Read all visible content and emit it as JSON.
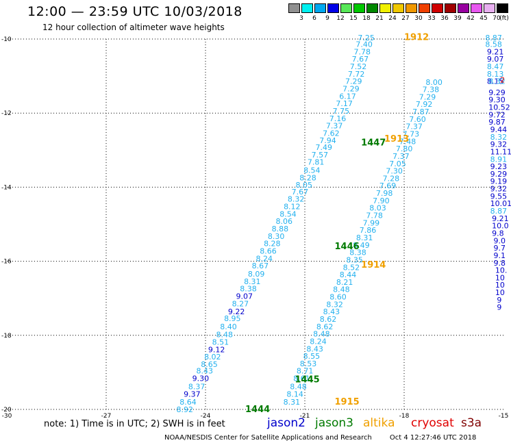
{
  "header": {
    "title": "12:00 — 23:59 UTC 10/03/2018",
    "subtitle": "12 hour collection of altimeter wave heights"
  },
  "legend": {
    "unit": "(ft)",
    "bins": [
      {
        "label": "3",
        "color": "#909090"
      },
      {
        "label": "6",
        "color": "#00f0f0"
      },
      {
        "label": "9",
        "color": "#00a8f0"
      },
      {
        "label": "12",
        "color": "#0000e8"
      },
      {
        "label": "15",
        "color": "#58e858"
      },
      {
        "label": "18",
        "color": "#00c800"
      },
      {
        "label": "21",
        "color": "#008800"
      },
      {
        "label": "24",
        "color": "#f0f000"
      },
      {
        "label": "27",
        "color": "#f0c800"
      },
      {
        "label": "30",
        "color": "#f09800"
      },
      {
        "label": "33",
        "color": "#f04000"
      },
      {
        "label": "36",
        "color": "#d00000"
      },
      {
        "label": "39",
        "color": "#a00000"
      },
      {
        "label": "42",
        "color": "#9800a0"
      },
      {
        "label": "45",
        "color": "#e858f0"
      },
      {
        "label": "70",
        "color": "#e8b0f0"
      },
      {
        "label": "",
        "color": "#000000"
      }
    ]
  },
  "map": {
    "x_ticks": [
      "-30",
      "-27",
      "-24",
      "-21",
      "-18",
      "-15"
    ],
    "y_ticks": [
      "-10",
      "-12",
      "-14",
      "-16",
      "-18",
      "-20"
    ],
    "colors": {
      "c": "#22b0ee",
      "b": "#0000cc",
      "g": "#007a00",
      "o": "#f0a000",
      "r": "#e00000"
    },
    "annotations": [
      {
        "lon": -20.1,
        "lat": -19.8,
        "text": "1915",
        "color": "o"
      },
      {
        "lon": -22.8,
        "lat": -20.0,
        "text": "1444",
        "color": "g"
      },
      {
        "lon": -21.3,
        "lat": -19.2,
        "text": "1445",
        "color": "g"
      },
      {
        "lon": -20.1,
        "lat": -15.6,
        "text": "1446",
        "color": "g"
      },
      {
        "lon": -19.3,
        "lat": -12.8,
        "text": "1447",
        "color": "g"
      },
      {
        "lon": -19.3,
        "lat": -16.1,
        "text": "1914",
        "color": "o"
      },
      {
        "lon": -18.6,
        "lat": -12.7,
        "text": "1913",
        "color": "o"
      },
      {
        "lon": -18.0,
        "lat": -9.95,
        "text": "1912",
        "color": "o"
      }
    ],
    "labels": [
      {
        "lon": -24.88,
        "lat": -20.0,
        "text": "8.92",
        "color": "c"
      },
      {
        "lon": -24.78,
        "lat": -19.8,
        "text": "8.64",
        "color": "c"
      },
      {
        "lon": -24.66,
        "lat": -19.58,
        "text": "9.37",
        "color": "b"
      },
      {
        "lon": -24.52,
        "lat": -19.38,
        "text": "8.37",
        "color": "c"
      },
      {
        "lon": -24.4,
        "lat": -19.16,
        "text": "9.30",
        "color": "b"
      },
      {
        "lon": -24.28,
        "lat": -18.96,
        "text": "8.43",
        "color": "c"
      },
      {
        "lon": -24.14,
        "lat": -18.78,
        "text": "8.65",
        "color": "c"
      },
      {
        "lon": -24.04,
        "lat": -18.58,
        "text": "8.02",
        "color": "c"
      },
      {
        "lon": -23.92,
        "lat": -18.38,
        "text": "9.12",
        "color": "b"
      },
      {
        "lon": -23.8,
        "lat": -18.18,
        "text": "8.51",
        "color": "c"
      },
      {
        "lon": -23.68,
        "lat": -17.98,
        "text": "8.48",
        "color": "c"
      },
      {
        "lon": -23.56,
        "lat": -17.76,
        "text": "8.40",
        "color": "c"
      },
      {
        "lon": -23.44,
        "lat": -17.54,
        "text": "8.95",
        "color": "c"
      },
      {
        "lon": -23.32,
        "lat": -17.36,
        "text": "9.22",
        "color": "b"
      },
      {
        "lon": -23.2,
        "lat": -17.14,
        "text": "8.27",
        "color": "c"
      },
      {
        "lon": -23.08,
        "lat": -16.94,
        "text": "9.07",
        "color": "b"
      },
      {
        "lon": -22.96,
        "lat": -16.74,
        "text": "8.38",
        "color": "c"
      },
      {
        "lon": -22.84,
        "lat": -16.54,
        "text": "8.31",
        "color": "c"
      },
      {
        "lon": -22.72,
        "lat": -16.34,
        "text": "8.09",
        "color": "c"
      },
      {
        "lon": -22.6,
        "lat": -16.12,
        "text": "8.67",
        "color": "c"
      },
      {
        "lon": -22.48,
        "lat": -15.92,
        "text": "8.24",
        "color": "c"
      },
      {
        "lon": -22.36,
        "lat": -15.72,
        "text": "8.66",
        "color": "c"
      },
      {
        "lon": -22.24,
        "lat": -15.52,
        "text": "8.28",
        "color": "c"
      },
      {
        "lon": -22.12,
        "lat": -15.32,
        "text": "8.30",
        "color": "c"
      },
      {
        "lon": -22.0,
        "lat": -15.12,
        "text": "8.88",
        "color": "c"
      },
      {
        "lon": -21.88,
        "lat": -14.92,
        "text": "8.06",
        "color": "c"
      },
      {
        "lon": -21.76,
        "lat": -14.72,
        "text": "8.54",
        "color": "c"
      },
      {
        "lon": -21.64,
        "lat": -14.52,
        "text": "8.12",
        "color": "c"
      },
      {
        "lon": -21.52,
        "lat": -14.32,
        "text": "8.32",
        "color": "c"
      },
      {
        "lon": -21.4,
        "lat": -14.12,
        "text": "7.67",
        "color": "c"
      },
      {
        "lon": -21.28,
        "lat": -13.94,
        "text": "8.05",
        "color": "c"
      },
      {
        "lon": -21.16,
        "lat": -13.74,
        "text": "8.28",
        "color": "c"
      },
      {
        "lon": -21.04,
        "lat": -13.54,
        "text": "8.54",
        "color": "c"
      },
      {
        "lon": -20.92,
        "lat": -13.32,
        "text": "7.81",
        "color": "c"
      },
      {
        "lon": -20.8,
        "lat": -13.12,
        "text": "7.57",
        "color": "c"
      },
      {
        "lon": -20.68,
        "lat": -12.92,
        "text": "7.49",
        "color": "c"
      },
      {
        "lon": -20.56,
        "lat": -12.74,
        "text": "7.94",
        "color": "c"
      },
      {
        "lon": -20.46,
        "lat": -12.54,
        "text": "7.62",
        "color": "c"
      },
      {
        "lon": -20.36,
        "lat": -12.34,
        "text": "7.37",
        "color": "c"
      },
      {
        "lon": -20.26,
        "lat": -12.14,
        "text": "7.16",
        "color": "c"
      },
      {
        "lon": -20.16,
        "lat": -11.94,
        "text": "7.75",
        "color": "c"
      },
      {
        "lon": -20.06,
        "lat": -11.74,
        "text": "7.17",
        "color": "c"
      },
      {
        "lon": -19.96,
        "lat": -11.54,
        "text": "6.17",
        "color": "c"
      },
      {
        "lon": -19.86,
        "lat": -11.34,
        "text": "7.29",
        "color": "c"
      },
      {
        "lon": -19.78,
        "lat": -11.14,
        "text": "7.29",
        "color": "c"
      },
      {
        "lon": -19.7,
        "lat": -10.94,
        "text": "7.72",
        "color": "c"
      },
      {
        "lon": -19.64,
        "lat": -10.74,
        "text": "7.52",
        "color": "c"
      },
      {
        "lon": -19.58,
        "lat": -10.54,
        "text": "7.67",
        "color": "c"
      },
      {
        "lon": -19.52,
        "lat": -10.34,
        "text": "7.78",
        "color": "c"
      },
      {
        "lon": -19.46,
        "lat": -10.14,
        "text": "7.40",
        "color": "c"
      },
      {
        "lon": -19.4,
        "lat": -9.96,
        "text": "7.25",
        "color": "c"
      },
      {
        "lon": -21.65,
        "lat": -19.8,
        "text": "8.31",
        "color": "c"
      },
      {
        "lon": -21.55,
        "lat": -19.58,
        "text": "8.14",
        "color": "c"
      },
      {
        "lon": -21.45,
        "lat": -19.38,
        "text": "8.48",
        "color": "c"
      },
      {
        "lon": -21.35,
        "lat": -19.16,
        "text": "8.61",
        "color": "c"
      },
      {
        "lon": -21.25,
        "lat": -18.96,
        "text": "8.71",
        "color": "c"
      },
      {
        "lon": -21.15,
        "lat": -18.76,
        "text": "8.53",
        "color": "c"
      },
      {
        "lon": -21.05,
        "lat": -18.56,
        "text": "8.55",
        "color": "c"
      },
      {
        "lon": -20.95,
        "lat": -18.36,
        "text": "8.43",
        "color": "c"
      },
      {
        "lon": -20.85,
        "lat": -18.16,
        "text": "8.24",
        "color": "c"
      },
      {
        "lon": -20.75,
        "lat": -17.96,
        "text": "8.48",
        "color": "c"
      },
      {
        "lon": -20.65,
        "lat": -17.76,
        "text": "8.62",
        "color": "c"
      },
      {
        "lon": -20.55,
        "lat": -17.56,
        "text": "8.62",
        "color": "c"
      },
      {
        "lon": -20.45,
        "lat": -17.36,
        "text": "8.43",
        "color": "c"
      },
      {
        "lon": -20.35,
        "lat": -17.16,
        "text": "8.32",
        "color": "c"
      },
      {
        "lon": -20.25,
        "lat": -16.96,
        "text": "8.60",
        "color": "c"
      },
      {
        "lon": -20.15,
        "lat": -16.76,
        "text": "8.48",
        "color": "c"
      },
      {
        "lon": -20.05,
        "lat": -16.56,
        "text": "8.21",
        "color": "c"
      },
      {
        "lon": -19.95,
        "lat": -16.36,
        "text": "8.44",
        "color": "c"
      },
      {
        "lon": -19.85,
        "lat": -16.16,
        "text": "8.52",
        "color": "c"
      },
      {
        "lon": -19.75,
        "lat": -15.96,
        "text": "8.35",
        "color": "c"
      },
      {
        "lon": -19.65,
        "lat": -15.76,
        "text": "8.38",
        "color": "c"
      },
      {
        "lon": -19.55,
        "lat": -15.56,
        "text": "8.49",
        "color": "c"
      },
      {
        "lon": -19.45,
        "lat": -15.36,
        "text": "8.31",
        "color": "c"
      },
      {
        "lon": -19.35,
        "lat": -15.16,
        "text": "7.86",
        "color": "c"
      },
      {
        "lon": -19.25,
        "lat": -14.96,
        "text": "7.99",
        "color": "c"
      },
      {
        "lon": -19.15,
        "lat": -14.76,
        "text": "7.78",
        "color": "c"
      },
      {
        "lon": -19.05,
        "lat": -14.56,
        "text": "8.03",
        "color": "c"
      },
      {
        "lon": -18.95,
        "lat": -14.36,
        "text": "7.90",
        "color": "c"
      },
      {
        "lon": -18.85,
        "lat": -14.16,
        "text": "7.98",
        "color": "c"
      },
      {
        "lon": -18.75,
        "lat": -13.96,
        "text": "7.69",
        "color": "c"
      },
      {
        "lon": -18.65,
        "lat": -13.76,
        "text": "7.28",
        "color": "c"
      },
      {
        "lon": -18.55,
        "lat": -13.56,
        "text": "7.30",
        "color": "c"
      },
      {
        "lon": -18.45,
        "lat": -13.36,
        "text": "7.05",
        "color": "c"
      },
      {
        "lon": -18.35,
        "lat": -13.16,
        "text": "7.37",
        "color": "c"
      },
      {
        "lon": -18.25,
        "lat": -12.96,
        "text": "7.80",
        "color": "c"
      },
      {
        "lon": -18.15,
        "lat": -12.76,
        "text": "7.48",
        "color": "c"
      },
      {
        "lon": -18.05,
        "lat": -12.56,
        "text": "7.73",
        "color": "c"
      },
      {
        "lon": -17.95,
        "lat": -12.36,
        "text": "7.37",
        "color": "c"
      },
      {
        "lon": -17.85,
        "lat": -12.16,
        "text": "7.60",
        "color": "c"
      },
      {
        "lon": -17.75,
        "lat": -11.96,
        "text": "7.87",
        "color": "c"
      },
      {
        "lon": -17.65,
        "lat": -11.76,
        "text": "7.92",
        "color": "c"
      },
      {
        "lon": -17.55,
        "lat": -11.56,
        "text": "7.29",
        "color": "c"
      },
      {
        "lon": -17.45,
        "lat": -11.36,
        "text": "7.38",
        "color": "c"
      },
      {
        "lon": -17.35,
        "lat": -11.16,
        "text": "8.00",
        "color": "c"
      },
      {
        "lon": -15.55,
        "lat": -9.96,
        "text": "8.87",
        "color": "c"
      },
      {
        "lon": -15.55,
        "lat": -10.14,
        "text": "8.58",
        "color": "c"
      },
      {
        "lon": -15.5,
        "lat": -10.34,
        "text": "9.21",
        "color": "b"
      },
      {
        "lon": -15.5,
        "lat": -10.54,
        "text": "9.07",
        "color": "b"
      },
      {
        "lon": -15.5,
        "lat": -10.74,
        "text": "8.47",
        "color": "c"
      },
      {
        "lon": -15.5,
        "lat": -10.94,
        "text": "8.13",
        "color": "c"
      },
      {
        "lon": -15.5,
        "lat": -11.14,
        "text": "8.15",
        "color": "b"
      },
      {
        "lon": -15.45,
        "lat": -11.14,
        "text": "8.32",
        "color": "c"
      },
      {
        "lon": -15.45,
        "lat": -11.44,
        "text": "9.29",
        "color": "b"
      },
      {
        "lon": -15.45,
        "lat": -11.64,
        "text": "9.30",
        "color": "b"
      },
      {
        "lon": -15.45,
        "lat": -11.84,
        "text": "10.52",
        "color": "b"
      },
      {
        "lon": -15.45,
        "lat": -12.04,
        "text": "9.72",
        "color": "b"
      },
      {
        "lon": -15.45,
        "lat": -12.24,
        "text": "9.87",
        "color": "b"
      },
      {
        "lon": -15.4,
        "lat": -12.44,
        "text": "9.44",
        "color": "b"
      },
      {
        "lon": -15.4,
        "lat": -12.64,
        "text": "8.32",
        "color": "c"
      },
      {
        "lon": -15.4,
        "lat": -12.84,
        "text": "9.32",
        "color": "b"
      },
      {
        "lon": -15.4,
        "lat": -13.04,
        "text": "11.11",
        "color": "b"
      },
      {
        "lon": -15.4,
        "lat": -13.24,
        "text": "8.91",
        "color": "c"
      },
      {
        "lon": -15.4,
        "lat": -13.44,
        "text": "9.23",
        "color": "b"
      },
      {
        "lon": -15.4,
        "lat": -13.64,
        "text": "9.29",
        "color": "b"
      },
      {
        "lon": -15.4,
        "lat": -13.84,
        "text": "9.19",
        "color": "b"
      },
      {
        "lon": -15.4,
        "lat": -14.04,
        "text": "9.32",
        "color": "b"
      },
      {
        "lon": -15.4,
        "lat": -14.24,
        "text": "9.55",
        "color": "b"
      },
      {
        "lon": -15.4,
        "lat": -14.44,
        "text": "10.01",
        "color": "b"
      },
      {
        "lon": -15.4,
        "lat": -14.64,
        "text": "8.87",
        "color": "c"
      },
      {
        "lon": -15.35,
        "lat": -14.84,
        "text": "9.21",
        "color": "b"
      },
      {
        "lon": -15.35,
        "lat": -15.04,
        "text": "10.0",
        "color": "b"
      },
      {
        "lon": -15.35,
        "lat": -15.24,
        "text": "9.8",
        "color": "b"
      },
      {
        "lon": -15.3,
        "lat": -15.44,
        "text": "9.0",
        "color": "b"
      },
      {
        "lon": -15.3,
        "lat": -15.64,
        "text": "9.7",
        "color": "b"
      },
      {
        "lon": -15.3,
        "lat": -15.84,
        "text": "9.1",
        "color": "b"
      },
      {
        "lon": -15.3,
        "lat": -16.04,
        "text": "9.8",
        "color": "b"
      },
      {
        "lon": -15.25,
        "lat": -16.24,
        "text": "10.",
        "color": "b"
      },
      {
        "lon": -15.25,
        "lat": -16.44,
        "text": "10",
        "color": "b"
      },
      {
        "lon": -15.25,
        "lat": -16.64,
        "text": "10",
        "color": "b"
      },
      {
        "lon": -15.25,
        "lat": -16.84,
        "text": "10",
        "color": "b"
      },
      {
        "lon": -15.2,
        "lat": -17.04,
        "text": "9",
        "color": "b"
      },
      {
        "lon": -15.2,
        "lat": -17.24,
        "text": "9",
        "color": "b"
      },
      {
        "lon": -15.1,
        "lat": -11.1,
        "text": "2",
        "color": "r"
      }
    ]
  },
  "footer": {
    "note": "note: 1) Time is in UTC; 2) SWH is in feet",
    "credit": "NOAA/NESDIS Center for Satellite Applications and Research",
    "timestamp": "Oct  4 12:27:46 UTC 2018"
  },
  "satellites": [
    {
      "name": "jason2",
      "color": "#0000cc"
    },
    {
      "name": "jason3",
      "color": "#007a00"
    },
    {
      "name": "altika",
      "color": "#f0a000"
    },
    {
      "name": "cryosat",
      "color": "#e00000"
    },
    {
      "name": "s3a",
      "color": "#800000"
    }
  ]
}
